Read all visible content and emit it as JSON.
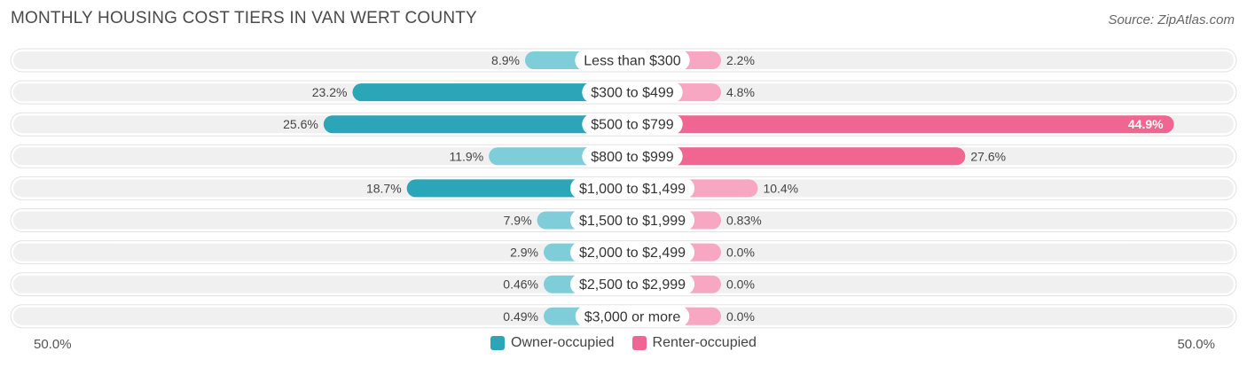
{
  "title": "MONTHLY HOUSING COST TIERS IN VAN WERT COUNTY",
  "source": "Source: ZipAtlas.com",
  "colors": {
    "owner": "#2ba5b8",
    "owner_light": "#7ecdd8",
    "renter": "#f06591",
    "renter_light": "#f7a7c1",
    "row_bg": "#f0f0f0"
  },
  "chart_data": {
    "type": "bar",
    "orientation": "horizontal-diverging",
    "categories": [
      "Less than $300",
      "$300 to $499",
      "$500 to $799",
      "$800 to $999",
      "$1,000 to $1,499",
      "$1,500 to $1,999",
      "$2,000 to $2,499",
      "$2,500 to $2,999",
      "$3,000 or more"
    ],
    "series": [
      {
        "name": "Owner-occupied",
        "values": [
          8.9,
          23.2,
          25.6,
          11.9,
          18.7,
          7.9,
          2.9,
          0.46,
          0.49
        ],
        "labels": [
          "8.9%",
          "23.2%",
          "25.6%",
          "11.9%",
          "18.7%",
          "7.9%",
          "2.9%",
          "0.46%",
          "0.49%"
        ]
      },
      {
        "name": "Renter-occupied",
        "values": [
          2.2,
          4.8,
          44.9,
          27.6,
          10.4,
          0.83,
          0.0,
          0.0,
          0.0
        ],
        "labels": [
          "2.2%",
          "4.8%",
          "44.9%",
          "27.6%",
          "10.4%",
          "0.83%",
          "0.0%",
          "0.0%",
          "0.0%"
        ]
      }
    ],
    "xlim": [
      -50,
      50
    ],
    "axis_left_label": "50.0%",
    "axis_right_label": "50.0%",
    "legend_position": "bottom-center"
  }
}
